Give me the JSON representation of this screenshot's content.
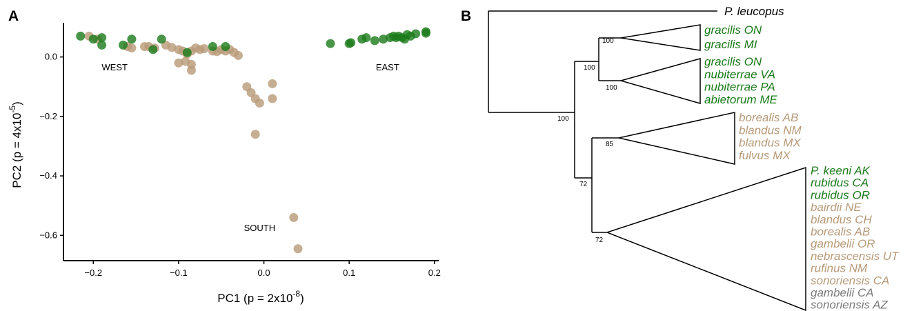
{
  "colors": {
    "east": "#1a7a1a",
    "west": "#b89a78",
    "other": "#7a7a7a",
    "black": "#000000"
  },
  "panel_a": {
    "label": "A",
    "region_labels": {
      "west": {
        "text": "WEST",
        "x": -0.175,
        "y": -0.045
      },
      "east": {
        "text": "EAST",
        "x": 0.145,
        "y": -0.045
      },
      "south": {
        "text": "SOUTH",
        "x": -0.005,
        "y": -0.585
      }
    },
    "chart_data": {
      "type": "scatter",
      "xlabel": "PC1 (p = 2x10",
      "xlabel_exp": "-8",
      "xlabel_end": ")",
      "ylabel": "PC2  (p = 4x10",
      "ylabel_exp": "-5",
      "ylabel_end": ")",
      "xlim": [
        -0.235,
        0.205
      ],
      "ylim": [
        -0.685,
        0.115
      ],
      "xticks": [
        -0.2,
        -0.1,
        0.0,
        0.1,
        0.2
      ],
      "xtick_labels": [
        "−0.2",
        "−0.1",
        "0.0",
        "0.1",
        "0.2"
      ],
      "yticks": [
        0.0,
        -0.2,
        -0.4,
        -0.6
      ],
      "ytick_labels": [
        "0.0",
        "−0.2",
        "−0.4",
        "−0.6"
      ],
      "series": [
        {
          "group": "west",
          "color": "#b89a78",
          "points": [
            [
              -0.205,
              0.07
            ],
            [
              -0.195,
              0.06
            ],
            [
              -0.16,
              0.035
            ],
            [
              -0.155,
              0.03
            ],
            [
              -0.14,
              0.035
            ],
            [
              -0.135,
              0.035
            ],
            [
              -0.128,
              0.03
            ],
            [
              -0.115,
              0.04
            ],
            [
              -0.108,
              0.032
            ],
            [
              -0.1,
              0.025
            ],
            [
              -0.095,
              0.02
            ],
            [
              -0.09,
              0.01
            ],
            [
              -0.085,
              0.02
            ],
            [
              -0.08,
              0.03
            ],
            [
              -0.075,
              0.025
            ],
            [
              -0.07,
              0.028
            ],
            [
              -0.06,
              0.02
            ],
            [
              -0.055,
              0.018
            ],
            [
              -0.05,
              0.025
            ],
            [
              -0.045,
              0.02
            ],
            [
              -0.04,
              0.025
            ],
            [
              -0.035,
              0.015
            ],
            [
              -0.03,
              0.005
            ],
            [
              -0.1,
              -0.02
            ],
            [
              -0.092,
              -0.015
            ],
            [
              -0.085,
              -0.045
            ],
            [
              -0.085,
              -0.025
            ],
            [
              -0.02,
              -0.1
            ],
            [
              -0.015,
              -0.12
            ],
            [
              -0.01,
              -0.14
            ],
            [
              -0.005,
              -0.155
            ],
            [
              0.01,
              -0.09
            ],
            [
              0.01,
              -0.14
            ],
            [
              -0.01,
              -0.26
            ],
            [
              0.035,
              -0.54
            ],
            [
              0.04,
              -0.645
            ]
          ]
        },
        {
          "group": "east",
          "color": "#1a7a1a",
          "points": [
            [
              -0.215,
              0.07
            ],
            [
              -0.2,
              0.06
            ],
            [
              -0.19,
              0.04
            ],
            [
              -0.19,
              0.065
            ],
            [
              -0.165,
              0.04
            ],
            [
              -0.155,
              0.06
            ],
            [
              -0.13,
              0.025
            ],
            [
              -0.12,
              0.06
            ],
            [
              -0.09,
              0.015
            ],
            [
              -0.06,
              0.035
            ],
            [
              -0.045,
              0.035
            ],
            [
              0.078,
              0.045
            ],
            [
              0.1,
              0.045
            ],
            [
              0.102,
              0.048
            ],
            [
              0.115,
              0.06
            ],
            [
              0.12,
              0.065
            ],
            [
              0.13,
              0.055
            ],
            [
              0.14,
              0.06
            ],
            [
              0.148,
              0.065
            ],
            [
              0.152,
              0.07
            ],
            [
              0.158,
              0.07
            ],
            [
              0.162,
              0.065
            ],
            [
              0.168,
              0.075
            ],
            [
              0.172,
              0.07
            ],
            [
              0.178,
              0.078
            ],
            [
              0.19,
              0.08
            ],
            [
              0.19,
              0.085
            ],
            [
              0.165,
              0.06
            ],
            [
              0.155,
              0.065
            ]
          ]
        }
      ]
    }
  },
  "panel_b": {
    "label": "B",
    "outgroup": {
      "name": "P. leucopus",
      "color": "#000000"
    },
    "clade_green1": {
      "support": "100",
      "taxa": [
        {
          "name": "gracilis ON",
          "color": "#1a7a1a"
        },
        {
          "name": "gracilis MI",
          "color": "#1a7a1a"
        }
      ]
    },
    "clade_green2": {
      "support": "100",
      "taxa": [
        {
          "name": "gracilis ON",
          "color": "#1a7a1a"
        },
        {
          "name": "nubiterrae VA",
          "color": "#1a7a1a"
        },
        {
          "name": "nubiterrae PA",
          "color": "#1a7a1a"
        },
        {
          "name": "abietorum ME",
          "color": "#1a7a1a"
        }
      ]
    },
    "clade_tan": {
      "support": "85",
      "taxa": [
        {
          "name": "borealis AB",
          "color": "#b89a78"
        },
        {
          "name": "blandus NM",
          "color": "#b89a78"
        },
        {
          "name": "blandus MX",
          "color": "#b89a78"
        },
        {
          "name": "fulvus MX",
          "color": "#b89a78"
        }
      ]
    },
    "clade_big": {
      "support": "72",
      "taxa": [
        {
          "name": "P. keeni AK",
          "color": "#1a7a1a"
        },
        {
          "name": "rubidus CA",
          "color": "#1a7a1a"
        },
        {
          "name": "rubidus OR",
          "color": "#1a7a1a"
        },
        {
          "name": "bairdii NE",
          "color": "#b89a78"
        },
        {
          "name": "blandus CH",
          "color": "#b89a78"
        },
        {
          "name": "borealis AB",
          "color": "#b89a78"
        },
        {
          "name": "gambelii OR",
          "color": "#b89a78"
        },
        {
          "name": "nebrascensis UT",
          "color": "#b89a78"
        },
        {
          "name": "rufinus NM",
          "color": "#b89a78"
        },
        {
          "name": "sonoriensis CA",
          "color": "#b89a78"
        },
        {
          "name": "gambelii CA",
          "color": "#7a7a7a"
        },
        {
          "name": "sonoriensis AZ",
          "color": "#7a7a7a"
        }
      ]
    },
    "node_supports": {
      "green_parent": "100",
      "root_ingroup": "100",
      "lower_parent": "72"
    }
  }
}
